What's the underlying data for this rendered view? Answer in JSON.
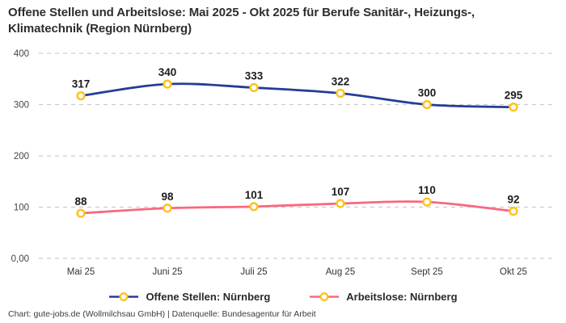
{
  "title": "Offene Stellen und Arbeitslose: Mai 2025 - Okt 2025 für Berufe Sanitär-, Heizungs-, Klimatechnik (Region Nürnberg)",
  "footer": "Chart: gute-jobs.de (Wollmilchsau GmbH) | Datenquelle: Bundesagentur für Arbeit",
  "colors": {
    "series1": "#223d99",
    "series2": "#f9687f",
    "marker_ring": "#fcc41f",
    "marker_fill": "#ffffff",
    "gridline": "#cccccc",
    "title_text": "#2e2e2e",
    "axis_text": "#454545",
    "value_label_text": "#1c1c1c"
  },
  "chart_data": {
    "type": "line",
    "title": "Offene Stellen und Arbeitslose: Mai 2025 - Okt 2025 für Berufe Sanitär-, Heizungs-, Klimatechnik (Region Nürnberg)",
    "categories": [
      "Mai 25",
      "Juni 25",
      "Juli 25",
      "Aug 25",
      "Sept 25",
      "Okt 25"
    ],
    "series": [
      {
        "name": "Offene Stellen: Nürnberg",
        "color": "#223d99",
        "values": [
          317,
          340,
          333,
          322,
          300,
          295
        ]
      },
      {
        "name": "Arbeitslose: Nürnberg",
        "color": "#f9687f",
        "values": [
          88,
          98,
          101,
          107,
          110,
          92
        ]
      }
    ],
    "xlabel": "",
    "ylabel": "",
    "ylim": [
      0,
      400
    ],
    "yticks": [
      0,
      100,
      200,
      300,
      400
    ],
    "ytick_labels": [
      "0,00",
      "100",
      "200",
      "300",
      "400"
    ],
    "grid": "horizontal-dashed",
    "legend_position": "bottom",
    "marker": "ring",
    "data_labels": "above-points"
  }
}
